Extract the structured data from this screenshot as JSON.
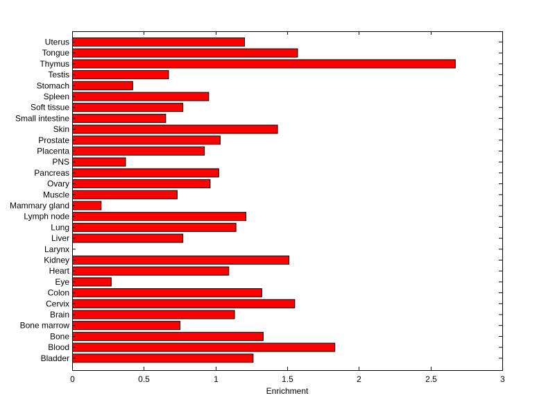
{
  "chart_data": {
    "type": "bar",
    "orientation": "horizontal",
    "title": "",
    "xlabel": "Enrichment",
    "ylabel": "",
    "xlim": [
      0,
      3
    ],
    "xticks": [
      0,
      0.5,
      1,
      1.5,
      2,
      2.5,
      3
    ],
    "xtick_labels": [
      "0",
      "0.5",
      "1",
      "1.5",
      "2",
      "2.5",
      "3"
    ],
    "grid": false,
    "bar_color": "#ff0000",
    "categories": [
      "Uterus",
      "Tongue",
      "Thymus",
      "Testis",
      "Stomach",
      "Spleen",
      "Soft tissue",
      "Small intestine",
      "Skin",
      "Prostate",
      "Placenta",
      "PNS",
      "Pancreas",
      "Ovary",
      "Muscle",
      "Mammary gland",
      "Lymph node",
      "Lung",
      "Liver",
      "Larynx",
      "Kidney",
      "Heart",
      "Eye",
      "Colon",
      "Cervix",
      "Brain",
      "Bone marrow",
      "Bone",
      "Blood",
      "Bladder"
    ],
    "values": [
      1.2,
      1.57,
      2.67,
      0.67,
      0.42,
      0.95,
      0.77,
      0.65,
      1.43,
      1.03,
      0.92,
      0.37,
      1.02,
      0.96,
      0.73,
      0.2,
      1.21,
      1.14,
      0.77,
      0.0,
      1.51,
      1.09,
      0.27,
      1.32,
      1.55,
      1.13,
      0.75,
      1.33,
      1.83,
      1.26
    ]
  }
}
